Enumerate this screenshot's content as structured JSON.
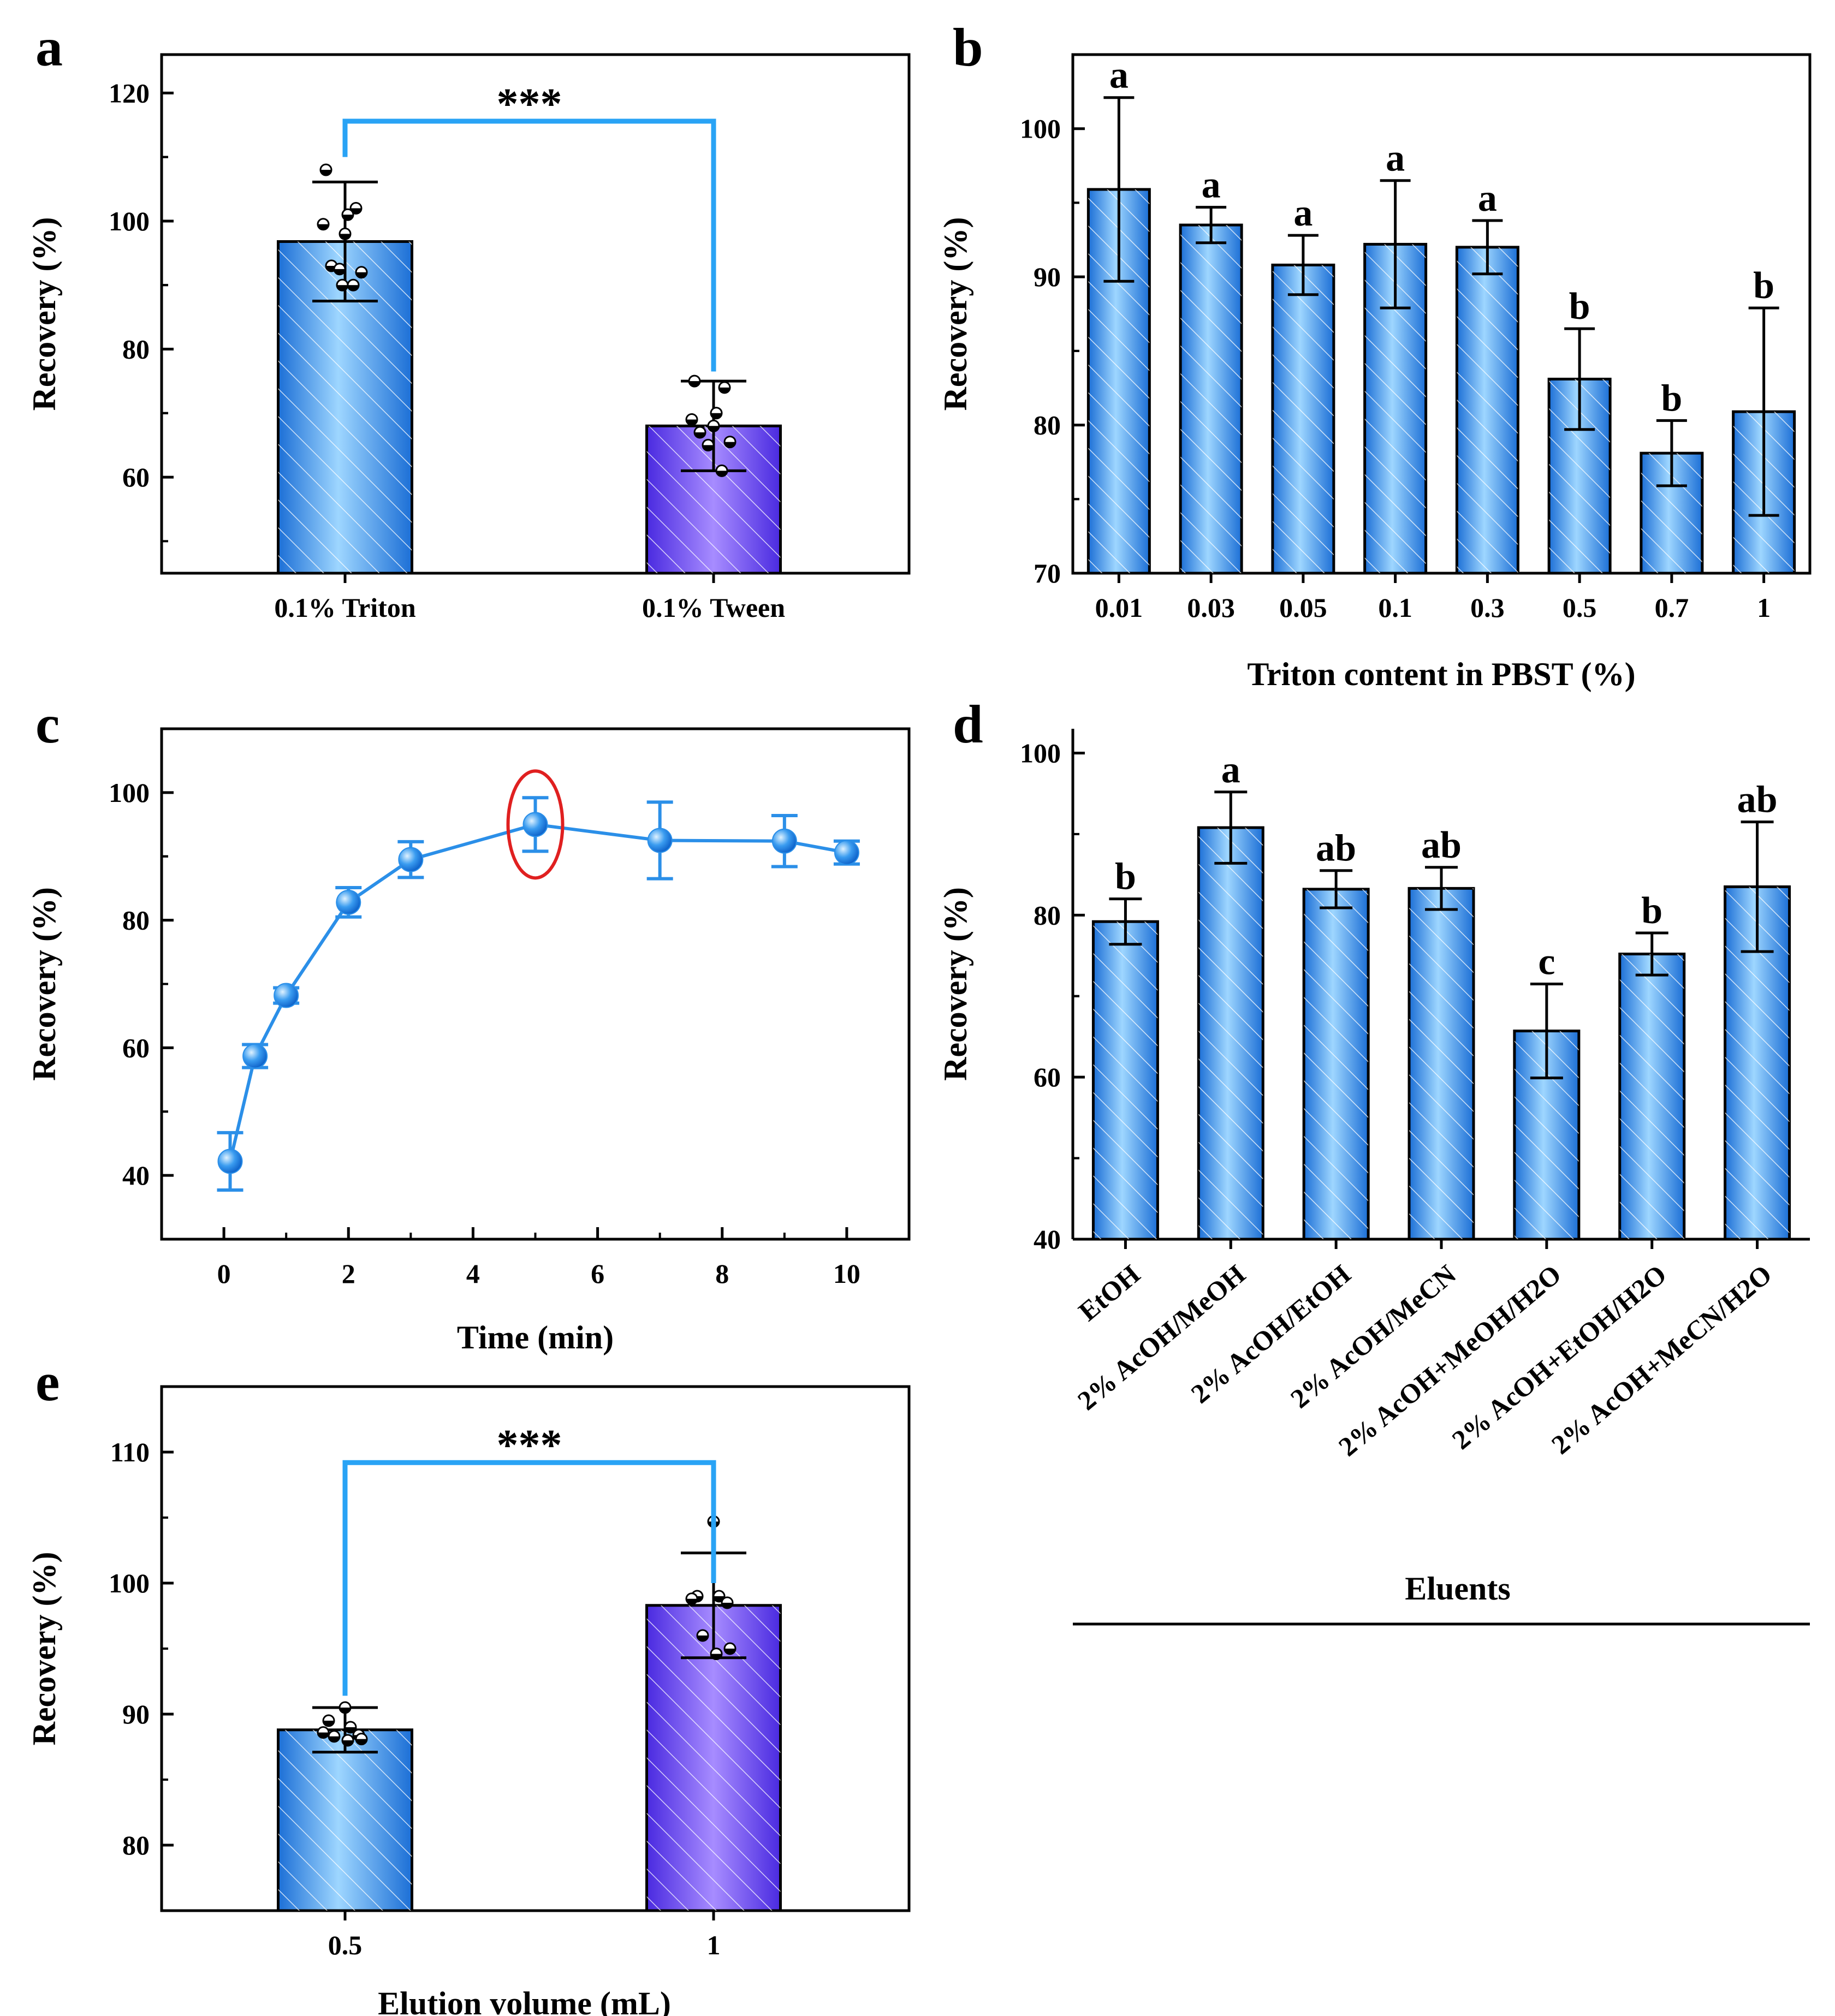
{
  "colors": {
    "blue_light": "#9ed6ff",
    "blue_mid": "#5aa8f0",
    "blue_dark": "#1c6fd6",
    "purple_light": "#a78cff",
    "purple_dark": "#4a2ae0",
    "bracket": "#29a3f5",
    "circle": "#e02020",
    "line_blue": "#2b8fe8",
    "axis": "#000000"
  },
  "chart_data": [
    {
      "panel": "a",
      "type": "bar",
      "categories": [
        "0.1% Triton",
        "0.1% Tween"
      ],
      "values": [
        96.8,
        68.0
      ],
      "error": [
        9.3,
        7.0
      ],
      "points": [
        [
          108,
          102,
          101,
          99.5,
          98,
          93,
          92,
          92.5,
          90,
          90
        ],
        [
          75,
          74,
          70,
          69,
          68,
          67,
          65.5,
          65,
          61
        ]
      ],
      "xlabel": "",
      "ylabel": "Recovery (%)",
      "ylim": [
        45,
        126
      ],
      "yticks": [
        "60",
        "80",
        "100",
        "120"
      ],
      "significance": "***"
    },
    {
      "panel": "b",
      "type": "bar",
      "categories": [
        "0.01",
        "0.03",
        "0.05",
        "0.1",
        "0.3",
        "0.5",
        "0.7",
        "1"
      ],
      "values": [
        95.9,
        93.5,
        90.8,
        92.2,
        92.0,
        83.1,
        78.1,
        80.9
      ],
      "error": [
        6.2,
        1.2,
        2.0,
        4.3,
        1.8,
        3.4,
        2.2,
        7.0
      ],
      "letters": [
        "a",
        "a",
        "a",
        "a",
        "a",
        "b",
        "b",
        "b"
      ],
      "xlabel": "Triton content in PBST (%)",
      "ylabel": "Recovery (%)",
      "ylim": [
        70,
        105
      ],
      "yticks": [
        "70",
        "80",
        "90",
        "100"
      ]
    },
    {
      "panel": "c",
      "type": "line",
      "x": [
        0.1,
        0.5,
        1,
        2,
        3,
        5,
        7,
        9,
        10
      ],
      "values": [
        42.2,
        58.7,
        68.2,
        82.8,
        89.5,
        95.0,
        92.5,
        92.4,
        90.6
      ],
      "error": [
        4.5,
        1.8,
        1.2,
        2.3,
        2.8,
        4.2,
        6.0,
        4.0,
        1.8
      ],
      "highlight_x": 5,
      "xlabel": "Time (min)",
      "ylabel": "Recovery (%)",
      "xlim": [
        -1,
        11
      ],
      "ylim": [
        30,
        110
      ],
      "xticks": [
        "0",
        "2",
        "4",
        "6",
        "8",
        "10"
      ],
      "yticks": [
        "40",
        "60",
        "80",
        "100"
      ]
    },
    {
      "panel": "d",
      "type": "bar",
      "categories": [
        "EtOH",
        "2% AcOH/MeOH",
        "2% AcOH/EtOH",
        "2% AcOH/MeCN",
        "2% AcOH+MeOH/H2O",
        "2% AcOH+EtOH/H2O",
        "2% AcOH+MeCN/H2O"
      ],
      "values": [
        79.2,
        90.8,
        83.2,
        83.3,
        65.7,
        75.2,
        83.5
      ],
      "error": [
        2.8,
        4.4,
        2.3,
        2.6,
        5.8,
        2.6,
        8.0
      ],
      "letters": [
        "b",
        "a",
        "ab",
        "ab",
        "c",
        "b",
        "ab"
      ],
      "xlabel": "Eluents",
      "ylabel": "Recovery (%)",
      "ylim": [
        40,
        103
      ],
      "yticks": [
        "40",
        "60",
        "80",
        "100"
      ]
    },
    {
      "panel": "e",
      "type": "bar",
      "categories": [
        "0.5",
        "1"
      ],
      "values": [
        88.8,
        98.3
      ],
      "error": [
        1.7,
        4.0
      ],
      "points": [
        [
          90.5,
          89.5,
          89,
          88.6,
          88.4,
          88.3,
          88.1,
          88
        ],
        [
          104.7,
          99,
          99,
          98.8,
          98.5,
          96,
          95,
          94.6
        ]
      ],
      "xlabel": "Elution volume (mL)",
      "ylabel": "Recovery (%)",
      "ylim": [
        75,
        115
      ],
      "yticks": [
        "80",
        "90",
        "100",
        "110"
      ],
      "significance": "***"
    }
  ]
}
